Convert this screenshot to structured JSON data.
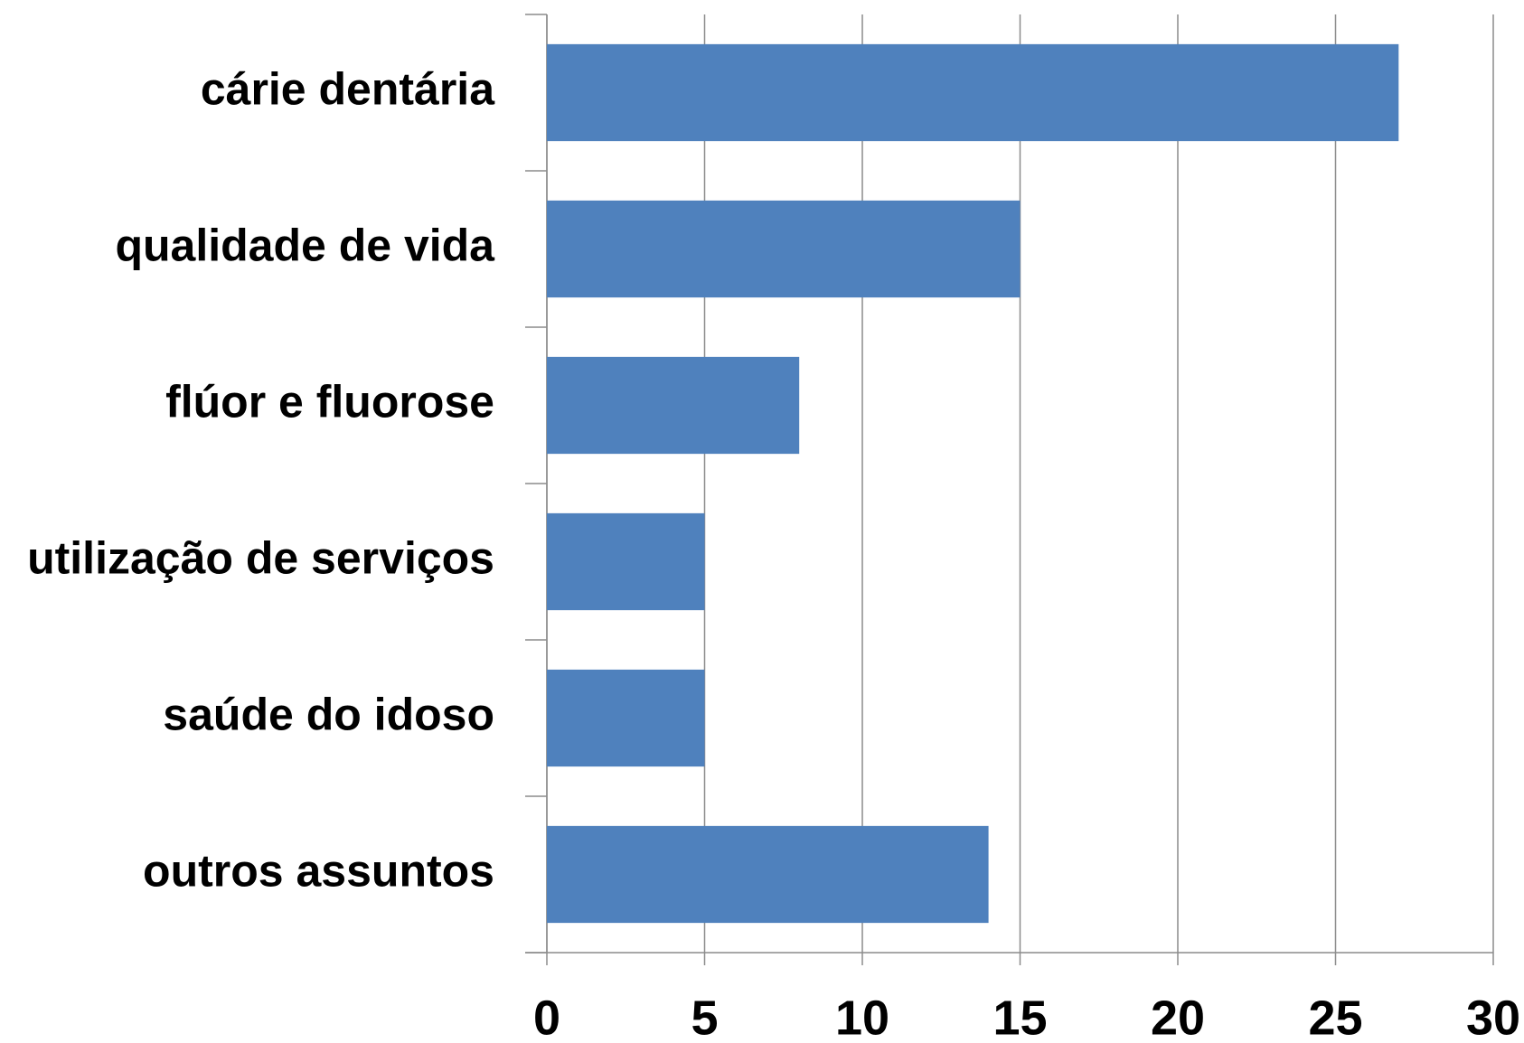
{
  "chart_data": {
    "type": "bar",
    "orientation": "horizontal",
    "categories": [
      "cárie dentária",
      "qualidade de vida",
      "flúor e fluorose",
      "utilização de serviços",
      "saúde do idoso",
      "outros assuntos"
    ],
    "values": [
      27,
      15,
      8,
      5,
      5,
      14
    ],
    "color": "#4f81bd",
    "xlim": [
      0,
      30
    ],
    "xticks": [
      0,
      5,
      10,
      15,
      20,
      25,
      30
    ],
    "grid": true
  }
}
